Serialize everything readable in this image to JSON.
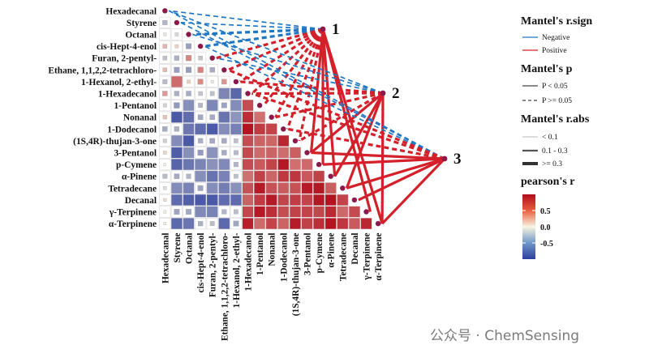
{
  "chart_data": {
    "type": "heatmap",
    "variables": [
      "Hexadecanal",
      "Styrene",
      "Octanal",
      "cis-Hept-4-enol",
      "Furan, 2-pentyl-",
      "Ethane, 1,1,2,2-tetrachloro-",
      "1-Hexanol, 2-ethyl-",
      "1-Hexadecanol",
      "1-Pentanol",
      "Nonanal",
      "1-Dodecanol",
      "(1S,4R)-thujan-3-one",
      "3-Pentanol",
      "p-Cymene",
      "α-Pinene",
      "Tetradecane",
      "Decanal",
      "γ-Terpinene",
      "α-Terpinene"
    ],
    "bold_row": "α-Pinene",
    "color_scale": {
      "title": "pearson's r",
      "ticks": [
        0.5,
        0.0,
        -0.5
      ],
      "tick_labels": [
        "0.5",
        "0.0",
        "-0.5"
      ],
      "range": [
        -1,
        1
      ],
      "low": "#2c3e9c",
      "mid": "#f7f3e0",
      "high": "#b10b1a"
    },
    "correlation_clusters": [
      {
        "members": [
          "1-Hexadecanol",
          "1-Pentanol",
          "Nonanal",
          "1-Dodecanol",
          "(1S,4R)-thujan-3-one",
          "3-Pentanol",
          "p-Cymene",
          "α-Pinene",
          "Tetradecane",
          "Decanal",
          "γ-Terpinene",
          "α-Terpinene"
        ],
        "within_r": 0.75
      },
      {
        "members": [
          "Styrene",
          "Octanal",
          "cis-Hept-4-enol",
          "Furan, 2-pentyl-",
          "Ethane, 1,1,2,2-tetrachloro-",
          "1-Hexanol, 2-ethyl-"
        ],
        "cross_r": -0.55
      }
    ],
    "mantel_nodes": [
      "1",
      "2",
      "3"
    ],
    "mantel_links": [
      {
        "node": "1",
        "variable": "Hexadecanal",
        "sign": "Negative",
        "p": "P >= 0.05",
        "r_abs": "0.1 - 0.3"
      },
      {
        "node": "1",
        "variable": "Styrene",
        "sign": "Negative",
        "p": "P >= 0.05",
        "r_abs": "0.1 - 0.3"
      },
      {
        "node": "1",
        "variable": "Octanal",
        "sign": "Negative",
        "p": "P >= 0.05",
        "r_abs": ">= 0.3"
      },
      {
        "node": "1",
        "variable": "cis-Hept-4-enol",
        "sign": "Negative",
        "p": "P >= 0.05",
        "r_abs": ">= 0.3"
      },
      {
        "node": "1",
        "variable": "Furan, 2-pentyl-",
        "sign": "Positive",
        "p": "P >= 0.05",
        "r_abs": ">= 0.3"
      },
      {
        "node": "1",
        "variable": "Ethane, 1,1,2,2-tetrachloro-",
        "sign": "Positive",
        "p": "P >= 0.05",
        "r_abs": ">= 0.3"
      },
      {
        "node": "1",
        "variable": "1-Hexanol, 2-ethyl-",
        "sign": "Positive",
        "p": "P >= 0.05",
        "r_abs": ">= 0.3"
      },
      {
        "node": "1",
        "variable": "1-Hexadecanol",
        "sign": "Positive",
        "p": "P >= 0.05",
        "r_abs": ">= 0.3"
      },
      {
        "node": "1",
        "variable": "1-Pentanol",
        "sign": "Positive",
        "p": "P >= 0.05",
        "r_abs": ">= 0.3"
      },
      {
        "node": "1",
        "variable": "Nonanal",
        "sign": "Positive",
        "p": "P >= 0.05",
        "r_abs": ">= 0.3"
      },
      {
        "node": "1",
        "variable": "1-Dodecanol",
        "sign": "Positive",
        "p": "P >= 0.05",
        "r_abs": ">= 0.3"
      },
      {
        "node": "1",
        "variable": "(1S,4R)-thujan-3-one",
        "sign": "Positive",
        "p": "P >= 0.05",
        "r_abs": ">= 0.3"
      },
      {
        "node": "1",
        "variable": "3-Pentanol",
        "sign": "Positive",
        "p": "P < 0.05",
        "r_abs": ">= 0.3"
      },
      {
        "node": "1",
        "variable": "p-Cymene",
        "sign": "Positive",
        "p": "P < 0.05",
        "r_abs": ">= 0.3"
      },
      {
        "node": "1",
        "variable": "α-Pinene",
        "sign": "Positive",
        "p": "P < 0.05",
        "r_abs": ">= 0.3"
      },
      {
        "node": "1",
        "variable": "γ-Terpinene",
        "sign": "Positive",
        "p": "P < 0.05",
        "r_abs": ">= 0.3"
      },
      {
        "node": "1",
        "variable": "α-Terpinene",
        "sign": "Positive",
        "p": "P < 0.05",
        "r_abs": ">= 0.3"
      },
      {
        "node": "2",
        "variable": "Hexadecanal",
        "sign": "Negative",
        "p": "P >= 0.05",
        "r_abs": "0.1 - 0.3"
      },
      {
        "node": "2",
        "variable": "Octanal",
        "sign": "Negative",
        "p": "P >= 0.05",
        "r_abs": "0.1 - 0.3"
      },
      {
        "node": "2",
        "variable": "Furan, 2-pentyl-",
        "sign": "Negative",
        "p": "P >= 0.05",
        "r_abs": "0.1 - 0.3"
      },
      {
        "node": "2",
        "variable": "1-Hexanol, 2-ethyl-",
        "sign": "Positive",
        "p": "P >= 0.05",
        "r_abs": ">= 0.3"
      },
      {
        "node": "2",
        "variable": "1-Hexadecanol",
        "sign": "Positive",
        "p": "P >= 0.05",
        "r_abs": ">= 0.3"
      },
      {
        "node": "2",
        "variable": "Nonanal",
        "sign": "Positive",
        "p": "P >= 0.05",
        "r_abs": ">= 0.3"
      },
      {
        "node": "2",
        "variable": "(1S,4R)-thujan-3-one",
        "sign": "Positive",
        "p": "P >= 0.05",
        "r_abs": ">= 0.3"
      },
      {
        "node": "2",
        "variable": "3-Pentanol",
        "sign": "Positive",
        "p": "P < 0.05",
        "r_abs": ">= 0.3"
      },
      {
        "node": "2",
        "variable": "α-Pinene",
        "sign": "Positive",
        "p": "P < 0.05",
        "r_abs": ">= 0.3"
      },
      {
        "node": "2",
        "variable": "Tetradecane",
        "sign": "Positive",
        "p": "P < 0.05",
        "r_abs": ">= 0.3"
      },
      {
        "node": "2",
        "variable": "α-Terpinene",
        "sign": "Positive",
        "p": "P < 0.05",
        "r_abs": ">= 0.3"
      },
      {
        "node": "3",
        "variable": "Hexadecanal",
        "sign": "Negative",
        "p": "P >= 0.05",
        "r_abs": "0.1 - 0.3"
      },
      {
        "node": "3",
        "variable": "Styrene",
        "sign": "Negative",
        "p": "P >= 0.05",
        "r_abs": "0.1 - 0.3"
      },
      {
        "node": "3",
        "variable": "cis-Hept-4-enol",
        "sign": "Negative",
        "p": "P >= 0.05",
        "r_abs": "0.1 - 0.3"
      },
      {
        "node": "3",
        "variable": "Ethane, 1,1,2,2-tetrachloro-",
        "sign": "Positive",
        "p": "P >= 0.05",
        "r_abs": ">= 0.3"
      },
      {
        "node": "3",
        "variable": "1-Hexadecanol",
        "sign": "Positive",
        "p": "P >= 0.05",
        "r_abs": ">= 0.3"
      },
      {
        "node": "3",
        "variable": "1-Dodecanol",
        "sign": "Positive",
        "p": "P >= 0.05",
        "r_abs": ">= 0.3"
      },
      {
        "node": "3",
        "variable": "3-Pentanol",
        "sign": "Positive",
        "p": "P < 0.05",
        "r_abs": ">= 0.3"
      },
      {
        "node": "3",
        "variable": "p-Cymene",
        "sign": "Positive",
        "p": "P < 0.05",
        "r_abs": ">= 0.3"
      },
      {
        "node": "3",
        "variable": "Tetradecane",
        "sign": "Positive",
        "p": "P < 0.05",
        "r_abs": ">= 0.3"
      },
      {
        "node": "3",
        "variable": "Decanal",
        "sign": "Positive",
        "p": "P < 0.05",
        "r_abs": ">= 0.3"
      },
      {
        "node": "3",
        "variable": "α-Terpinene",
        "sign": "Positive",
        "p": "P < 0.05",
        "r_abs": ">= 0.3"
      }
    ]
  },
  "legend": {
    "sign": {
      "title": "Mantel's r.sign",
      "items": [
        {
          "label": "Negative",
          "color": "#1f77c4"
        },
        {
          "label": "Positive",
          "color": "#d4202a"
        }
      ]
    },
    "p": {
      "title": "Mantel's p",
      "items": [
        {
          "label": "P < 0.05",
          "style": "solid"
        },
        {
          "label": "P >= 0.05",
          "style": "dashed"
        }
      ]
    },
    "rabs": {
      "title": "Mantel's r.abs",
      "items": [
        {
          "label": "< 0.1",
          "width": "thin"
        },
        {
          "label": "0.1 - 0.3",
          "width": "medium"
        },
        {
          "label": ">= 0.3",
          "width": "thick"
        }
      ]
    },
    "colorbar_title": "pearson's r"
  },
  "colors": {
    "negative": "#1f77c4",
    "positive": "#d4202a",
    "node": "#8b1a4a"
  },
  "watermark": "公众号 · ChemSensing"
}
